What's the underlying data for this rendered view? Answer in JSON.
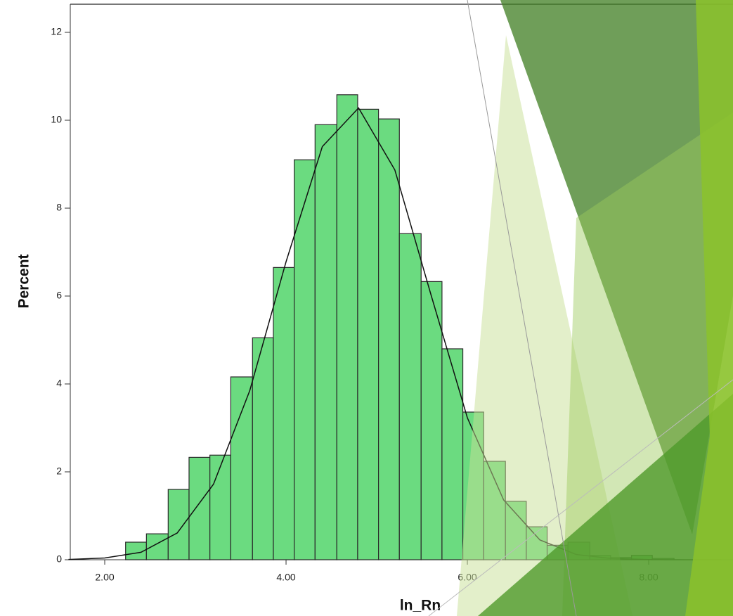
{
  "chart_data": {
    "type": "histogram",
    "x_label": "ln_Rn",
    "y_label": "Percent",
    "bins": [
      2.23,
      2.46,
      2.7,
      2.93,
      3.16,
      3.39,
      3.63,
      3.86,
      4.09,
      4.32,
      4.56,
      4.79,
      5.02,
      5.25,
      5.49,
      5.72,
      5.95,
      6.18,
      6.42,
      6.65,
      6.88,
      7.11,
      7.35,
      7.58,
      7.81,
      8.04,
      8.28
    ],
    "values": [
      0.4,
      0.59,
      1.6,
      2.33,
      2.38,
      4.16,
      5.05,
      6.65,
      9.1,
      9.9,
      10.58,
      10.25,
      10.03,
      7.42,
      6.33,
      4.8,
      3.36,
      2.24,
      1.33,
      0.75,
      0.33,
      0.4,
      0.1,
      0.05,
      0.1,
      0.03
    ],
    "color": "#6bdb80",
    "curve": {
      "x": [
        1.6,
        2.0,
        2.4,
        2.8,
        3.2,
        3.6,
        4.0,
        4.4,
        4.8,
        5.2,
        5.6,
        6.0,
        6.4,
        6.8,
        7.2,
        7.6,
        8.0,
        8.4,
        8.8
      ],
      "y": [
        0.006,
        0.04,
        0.17,
        0.61,
        1.72,
        3.85,
        6.78,
        9.4,
        10.28,
        8.87,
        6.02,
        3.23,
        1.36,
        0.45,
        0.12,
        0.025,
        0.004,
        0,
        0
      ]
    },
    "xlim": [
      1.62,
      8.93
    ],
    "ylim": [
      0,
      12.64
    ],
    "xticks": [
      {
        "value": 2,
        "label": "2.00"
      },
      {
        "value": 4,
        "label": "4.00"
      },
      {
        "value": 6,
        "label": "6.00"
      },
      {
        "value": 8,
        "label": "8.00"
      }
    ],
    "yticks": [
      0,
      2,
      4,
      6,
      8,
      10,
      12
    ]
  }
}
